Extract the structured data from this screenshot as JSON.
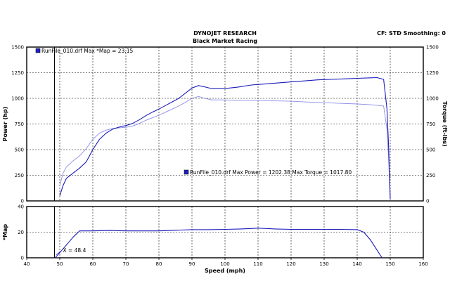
{
  "header": {
    "title": "DYNOJET RESEARCH",
    "subtitle": "Black Market Racing",
    "settings": "CF: STD  Smoothing: 0"
  },
  "colors": {
    "power": "#1a1ab8",
    "torque": "#8c8ce6",
    "grid": "#000000",
    "legend_box": "#2020c0"
  },
  "chart_data": [
    {
      "type": "line",
      "ylabel": "Power (hp)",
      "ylabel_right": "Torque (ft-lbs)",
      "xlim": [
        40,
        160
      ],
      "ylim": [
        0,
        1500
      ],
      "yticks": [
        0,
        250,
        500,
        750,
        1000,
        1250,
        1500
      ],
      "marker_x": 48.4,
      "legend_top": "RunFile_010.drf Max *Map = 23.15",
      "legend_mid": "RunFile_010.drf Max Power = 1202.38    Max Torque = 1017.80",
      "series": [
        {
          "name": "Power",
          "x": [
            50,
            51,
            52,
            54,
            56,
            58,
            60,
            62,
            64,
            66,
            68,
            70,
            72,
            74,
            76,
            78,
            80,
            82,
            84,
            86,
            88,
            90,
            92,
            94,
            96,
            98,
            100,
            104,
            108,
            112,
            116,
            120,
            124,
            128,
            132,
            136,
            140,
            144,
            146,
            148,
            149,
            149.5,
            150
          ],
          "y": [
            50,
            150,
            220,
            270,
            320,
            380,
            500,
            600,
            660,
            700,
            720,
            735,
            755,
            790,
            830,
            865,
            895,
            930,
            965,
            1000,
            1050,
            1100,
            1125,
            1110,
            1095,
            1095,
            1095,
            1110,
            1130,
            1140,
            1150,
            1160,
            1170,
            1180,
            1185,
            1190,
            1195,
            1200,
            1202,
            1185,
            900,
            550,
            20
          ]
        },
        {
          "name": "Torque",
          "x": [
            50,
            51,
            52,
            54,
            56,
            58,
            60,
            62,
            64,
            66,
            68,
            70,
            72,
            74,
            76,
            78,
            80,
            82,
            84,
            86,
            88,
            90,
            92,
            94,
            96,
            98,
            100,
            104,
            108,
            112,
            116,
            120,
            124,
            128,
            132,
            136,
            140,
            144,
            146,
            148,
            149,
            149.5,
            150
          ],
          "y": [
            150,
            270,
            330,
            390,
            440,
            510,
            600,
            660,
            690,
            705,
            712,
            718,
            728,
            755,
            785,
            810,
            835,
            865,
            895,
            925,
            960,
            1000,
            1018,
            1000,
            985,
            985,
            985,
            980,
            980,
            978,
            975,
            972,
            965,
            960,
            955,
            950,
            945,
            938,
            932,
            925,
            700,
            420,
            15
          ]
        }
      ]
    },
    {
      "type": "line",
      "ylabel": "*Map",
      "xlabel": "Speed (mph)",
      "xlim": [
        40,
        160
      ],
      "xticks": [
        40,
        50,
        60,
        70,
        80,
        90,
        100,
        110,
        120,
        130,
        140,
        150,
        160
      ],
      "ylim": [
        0,
        40
      ],
      "yticks": [
        0,
        20,
        40
      ],
      "cursor_label": "X = 48.4",
      "series": [
        {
          "name": "*Map",
          "x": [
            48.6,
            50,
            52,
            54,
            56,
            58,
            60,
            65,
            70,
            75,
            80,
            85,
            90,
            95,
            100,
            105,
            110,
            115,
            120,
            125,
            130,
            135,
            140,
            142,
            144,
            146,
            147.5
          ],
          "y": [
            0,
            4,
            10,
            16,
            21,
            21,
            21,
            21.3,
            21,
            21,
            21,
            21.5,
            22,
            22,
            22.2,
            22.5,
            23.15,
            22.5,
            22.2,
            22.2,
            22.2,
            22.2,
            22,
            20,
            14,
            6,
            0
          ]
        }
      ]
    }
  ]
}
